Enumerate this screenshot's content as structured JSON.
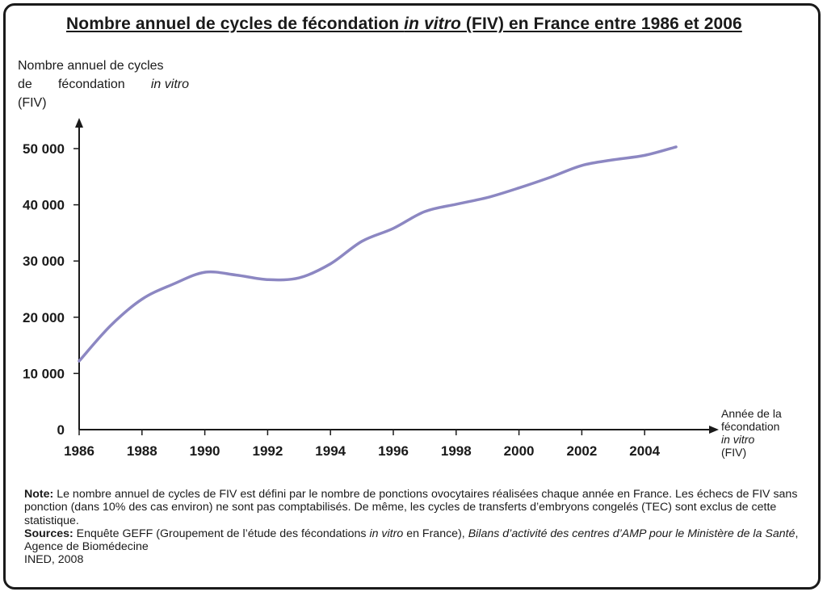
{
  "title": {
    "before": "Nombre annuel de cycles de fécondation ",
    "italic": "in vitro",
    "after": " (FIV) en France entre 1986 et 2006"
  },
  "ylabel": {
    "line1": "Nombre annuel de cycles",
    "line2a": "de",
    "line2b": "fécondation",
    "line2_italic": "in vitro",
    "line3": "(FIV)"
  },
  "xlabel": {
    "line1": "Année de la",
    "line2": "fécondation",
    "line3_italic": "in vitro",
    "line4": "(FIV)"
  },
  "notes": {
    "note_label": "Note:",
    "note_text": " Le nombre annuel de cycles de FIV est défini par le nombre de ponctions ovocytaires réalisées chaque année en France. Les  échecs de FIV sans ponction (dans 10% des cas environ) ne sont pas comptabilisés. De même, les cycles de transferts d’embryons congelés (TEC) sont exclus de cette statistique.",
    "sources_label": "Sources:",
    "sources_text1": " Enquête GEFF (Groupement de l’étude des fécondations ",
    "sources_italic1": "in vitro",
    "sources_text2": " en France), ",
    "sources_italic2": "Bilans d’activité des centres d’AMP pour le Ministère de la Santé",
    "sources_text3": ", Agence de Biomédecine",
    "credit": "INED, 2008"
  },
  "chart_data": {
    "type": "line",
    "x": [
      1986,
      1987,
      1988,
      1989,
      1990,
      1991,
      1992,
      1993,
      1994,
      1995,
      1996,
      1997,
      1998,
      1999,
      2000,
      2001,
      2002,
      2003,
      2004,
      2005
    ],
    "series": [
      {
        "values": [
          12200,
          18500,
          23200,
          25900,
          28000,
          27500,
          26700,
          27000,
          29500,
          33500,
          35800,
          38800,
          40100,
          41300,
          43000,
          44900,
          47000,
          48000,
          48800,
          50300
        ]
      }
    ],
    "color": "#8c87c2",
    "xlim": [
      1986,
      2006
    ],
    "ylim": [
      0,
      55000
    ],
    "x_ticks": [
      1986,
      1988,
      1990,
      1992,
      1994,
      1996,
      1998,
      2000,
      2002,
      2004
    ],
    "y_ticks": [
      0,
      10000,
      20000,
      30000,
      40000,
      50000
    ],
    "y_tick_labels": [
      "0",
      "10 000",
      "20 000",
      "30 000",
      "40 000",
      "50 000"
    ],
    "grid": false,
    "legend": "none"
  }
}
